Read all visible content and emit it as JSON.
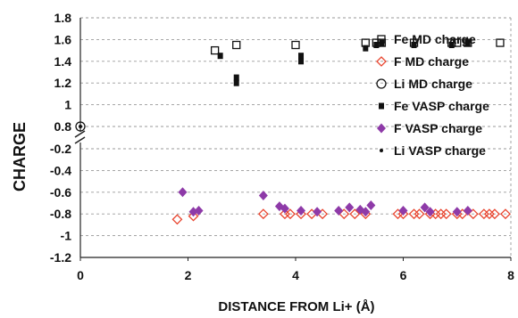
{
  "chart_data": {
    "type": "scatter",
    "xlabel": "DISTANCE FROM Li+ (Å)",
    "ylabel": "CHARGE",
    "xlim": [
      0,
      8
    ],
    "x_ticks": [
      "0",
      "2",
      "4",
      "6",
      "8"
    ],
    "y_ticks": [
      "1.8",
      "1.6",
      "1.4",
      "1.2",
      "1",
      "0.8",
      "-0.2",
      "-0.4",
      "-0.6",
      "-0.8",
      "-1",
      "-1.2"
    ],
    "y_axis_break": "between 0.8 and -0.2",
    "grid": "horizontal dashed",
    "legend_position": "right",
    "colors": {
      "fe": "#111111",
      "f_md": "#e8452f",
      "f_vasp": "#8e3aa8",
      "li": "#111111"
    },
    "series": [
      {
        "name": "Fe MD charge",
        "marker": "open-square",
        "points": [
          [
            2.5,
            1.5
          ],
          [
            2.9,
            1.55
          ],
          [
            4.0,
            1.55
          ],
          [
            5.3,
            1.57
          ],
          [
            5.5,
            1.57
          ],
          [
            5.6,
            1.57
          ],
          [
            6.2,
            1.57
          ],
          [
            6.9,
            1.57
          ],
          [
            7.0,
            1.57
          ],
          [
            7.2,
            1.57
          ],
          [
            7.8,
            1.57
          ]
        ]
      },
      {
        "name": "F MD charge",
        "marker": "open-diamond",
        "points": [
          [
            1.8,
            -0.85
          ],
          [
            2.1,
            -0.82
          ],
          [
            3.4,
            -0.8
          ],
          [
            3.8,
            -0.8
          ],
          [
            3.9,
            -0.8
          ],
          [
            4.1,
            -0.8
          ],
          [
            4.3,
            -0.8
          ],
          [
            4.5,
            -0.8
          ],
          [
            4.9,
            -0.8
          ],
          [
            5.1,
            -0.8
          ],
          [
            5.3,
            -0.8
          ],
          [
            5.9,
            -0.8
          ],
          [
            6.0,
            -0.8
          ],
          [
            6.2,
            -0.8
          ],
          [
            6.3,
            -0.8
          ],
          [
            6.5,
            -0.8
          ],
          [
            6.6,
            -0.8
          ],
          [
            6.7,
            -0.8
          ],
          [
            6.8,
            -0.8
          ],
          [
            7.0,
            -0.8
          ],
          [
            7.1,
            -0.8
          ],
          [
            7.3,
            -0.8
          ],
          [
            7.5,
            -0.8
          ],
          [
            7.6,
            -0.8
          ],
          [
            7.7,
            -0.8
          ],
          [
            7.9,
            -0.8
          ]
        ]
      },
      {
        "name": "Li MD charge",
        "marker": "open-circle",
        "points": [
          [
            0,
            0.8
          ]
        ]
      },
      {
        "name": "Fe VASP charge",
        "marker": "filled-square",
        "points": [
          [
            2.6,
            1.45
          ],
          [
            2.9,
            1.25
          ],
          [
            2.9,
            1.2
          ],
          [
            4.1,
            1.45
          ],
          [
            4.1,
            1.4
          ],
          [
            5.3,
            1.52
          ],
          [
            5.5,
            1.55
          ],
          [
            5.6,
            1.57
          ],
          [
            6.2,
            1.55
          ],
          [
            6.9,
            1.55
          ],
          [
            7.2,
            1.57
          ]
        ]
      },
      {
        "name": "F VASP charge",
        "marker": "filled-diamond",
        "points": [
          [
            1.9,
            -0.6
          ],
          [
            2.1,
            -0.78
          ],
          [
            2.2,
            -0.77
          ],
          [
            3.4,
            -0.63
          ],
          [
            3.7,
            -0.73
          ],
          [
            3.8,
            -0.75
          ],
          [
            4.1,
            -0.77
          ],
          [
            4.4,
            -0.78
          ],
          [
            4.8,
            -0.77
          ],
          [
            5.0,
            -0.74
          ],
          [
            5.2,
            -0.76
          ],
          [
            5.3,
            -0.78
          ],
          [
            5.4,
            -0.72
          ],
          [
            6.0,
            -0.77
          ],
          [
            6.4,
            -0.74
          ],
          [
            6.5,
            -0.78
          ],
          [
            7.0,
            -0.78
          ],
          [
            7.2,
            -0.77
          ]
        ]
      },
      {
        "name": "Li VASP charge",
        "marker": "filled-dot",
        "points": [
          [
            0,
            0.8
          ]
        ]
      }
    ]
  }
}
